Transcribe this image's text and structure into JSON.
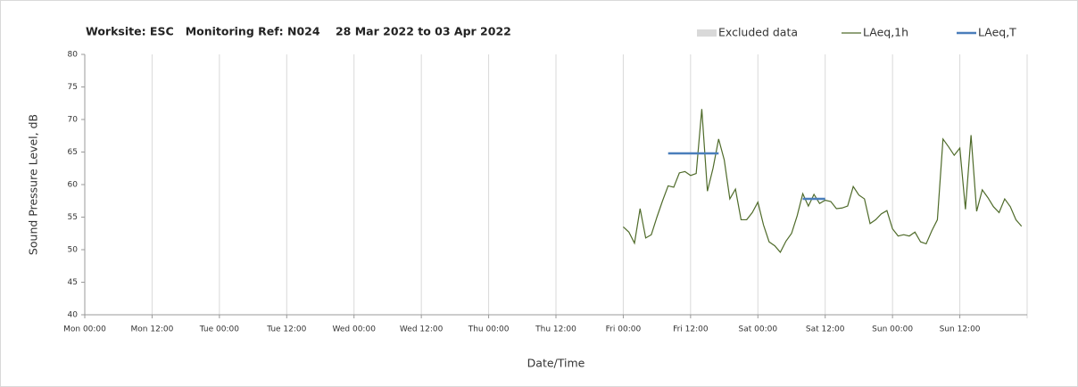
{
  "chart_data": {
    "type": "line",
    "title": "Worksite: ESC   Monitoring Ref: N024    28 Mar 2022 to 03 Apr 2022",
    "y_label": "Sound Pressure Level, dB",
    "x_label": "Date/Time",
    "xlim": [
      0,
      168
    ],
    "xticks": [
      {
        "value": 0,
        "label": "Mon 00:00"
      },
      {
        "value": 12,
        "label": "Mon 12:00"
      },
      {
        "value": 24,
        "label": "Tue 00:00"
      },
      {
        "value": 36,
        "label": "Tue 12:00"
      },
      {
        "value": 48,
        "label": "Wed 00:00"
      },
      {
        "value": 60,
        "label": "Wed 12:00"
      },
      {
        "value": 72,
        "label": "Thu 00:00"
      },
      {
        "value": 84,
        "label": "Thu 12:00"
      },
      {
        "value": 96,
        "label": "Fri 00:00"
      },
      {
        "value": 108,
        "label": "Fri 12:00"
      },
      {
        "value": 120,
        "label": "Sat 00:00"
      },
      {
        "value": 132,
        "label": "Sat 12:00"
      },
      {
        "value": 144,
        "label": "Sun 00:00"
      },
      {
        "value": 156,
        "label": "Sun 12:00"
      }
    ],
    "ylim": [
      40,
      80
    ],
    "yticks": [
      40,
      45,
      50,
      55,
      60,
      65,
      70,
      75,
      80
    ],
    "grid": "x",
    "series": [
      {
        "name": "Excluded data",
        "color": "#d9d9d9",
        "values": []
      },
      {
        "name": "LAeq,1h",
        "color": "#4f6b2a",
        "x": [
          96,
          97,
          98,
          99,
          100,
          101,
          102,
          103,
          104,
          105,
          106,
          107,
          108,
          109,
          110,
          111,
          112,
          113,
          114,
          115,
          116,
          117,
          118,
          119,
          120,
          121,
          122,
          123,
          124,
          125,
          126,
          127,
          128,
          129,
          130,
          131,
          132,
          133,
          134,
          135,
          136,
          137,
          138,
          139,
          140,
          141,
          142,
          143,
          144,
          145,
          146,
          147,
          148,
          149,
          150,
          151,
          152,
          153,
          154,
          155,
          156,
          157,
          158,
          159,
          160,
          161,
          162,
          163,
          164,
          165,
          166,
          167
        ],
        "values": [
          53.5,
          52.7,
          51,
          56.3,
          51.8,
          52.3,
          55,
          57.5,
          59.8,
          59.6,
          61.8,
          62,
          61.4,
          61.7,
          71.6,
          59,
          62.5,
          67,
          63.8,
          57.8,
          59.3,
          54.6,
          54.6,
          55.7,
          57.3,
          53.8,
          51.2,
          50.6,
          49.6,
          51.3,
          52.5,
          55.2,
          58.6,
          56.7,
          58.5,
          57.1,
          57.6,
          57.4,
          56.3,
          56.4,
          56.7,
          59.7,
          58.4,
          57.8,
          54,
          54.6,
          55.5,
          56,
          53.2,
          52.1,
          52.3,
          52.1,
          52.7,
          51.2,
          50.9,
          52.9,
          54.6,
          67,
          65.8,
          64.5,
          65.6,
          56.2,
          67.6,
          55.9,
          59.2,
          58,
          56.6,
          55.7,
          57.8,
          56.6,
          54.6,
          53.6
        ]
      },
      {
        "name": "LAeq,T",
        "color": "#4a7ebb",
        "x": [
          104,
          113,
          120,
          128,
          132
        ],
        "values": [
          64.8,
          64.8,
          null,
          57.8,
          57.8
        ]
      }
    ]
  }
}
